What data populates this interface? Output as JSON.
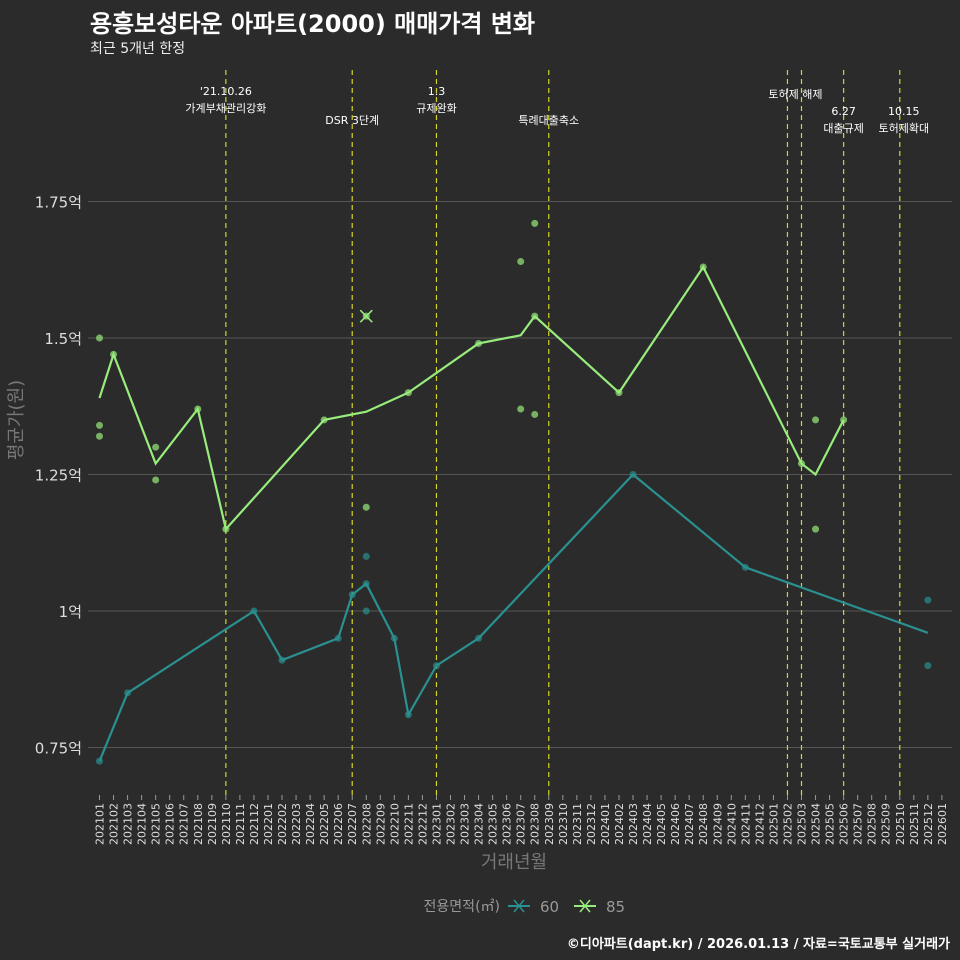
{
  "header": {
    "title": "용흥보성타운 아파트(2000) 매매가격 변화",
    "subtitle": "최근 5개년 한정"
  },
  "footer": "©디아파트(dapt.kr) / 2026.01.13 / 자료=국토교통부 실거래가",
  "colors": {
    "s60": "#2a9090",
    "s85": "#98ec7c",
    "vline": "#d4d42a",
    "grid": "#555555",
    "bg": "#2b2b2b"
  },
  "chart_data": {
    "type": "line",
    "title": "용흥보성타운 아파트(2000) 매매가격 변화",
    "xlabel": "거래년월",
    "ylabel": "평균가(원)",
    "ylim": [
      0.68,
      1.9
    ],
    "yticks": [
      {
        "v": 0.75,
        "label": "0.75억"
      },
      {
        "v": 1.0,
        "label": "1억"
      },
      {
        "v": 1.25,
        "label": "1.25억"
      },
      {
        "v": 1.5,
        "label": "1.5억"
      },
      {
        "v": 1.75,
        "label": "1.75억"
      }
    ],
    "categories": [
      "202101",
      "202102",
      "202103",
      "202104",
      "202105",
      "202106",
      "202107",
      "202108",
      "202109",
      "202110",
      "202111",
      "202112",
      "202201",
      "202202",
      "202203",
      "202204",
      "202205",
      "202206",
      "202207",
      "202208",
      "202209",
      "202210",
      "202211",
      "202212",
      "202301",
      "202302",
      "202303",
      "202304",
      "202305",
      "202306",
      "202307",
      "202308",
      "202309",
      "202310",
      "202311",
      "202312",
      "202401",
      "202402",
      "202403",
      "202404",
      "202405",
      "202406",
      "202407",
      "202408",
      "202409",
      "202410",
      "202411",
      "202412",
      "202501",
      "202502",
      "202503",
      "202504",
      "202505",
      "202506",
      "202507",
      "202508",
      "202509",
      "202510",
      "202511",
      "202512",
      "202601"
    ],
    "legend": {
      "title": "전용면적(㎡)",
      "position": "bottom"
    },
    "series": [
      {
        "name": "60",
        "line": [
          [
            0,
            0.725
          ],
          [
            2,
            0.85
          ],
          [
            11,
            1.0
          ],
          [
            13,
            0.91
          ],
          [
            17,
            0.95
          ],
          [
            18,
            1.03
          ],
          [
            19,
            1.05
          ],
          [
            21,
            0.95
          ],
          [
            22,
            0.81
          ],
          [
            24,
            0.9
          ],
          [
            27,
            0.95
          ],
          [
            38,
            1.25
          ],
          [
            46,
            1.08
          ],
          [
            59,
            0.96
          ]
        ],
        "points": [
          [
            0,
            0.725
          ],
          [
            2,
            0.85
          ],
          [
            11,
            1.0
          ],
          [
            13,
            0.91
          ],
          [
            17,
            0.95
          ],
          [
            18,
            1.03
          ],
          [
            19,
            1.05
          ],
          [
            19,
            1.1
          ],
          [
            19,
            1.0
          ],
          [
            21,
            0.95
          ],
          [
            22,
            0.81
          ],
          [
            24,
            0.9
          ],
          [
            27,
            0.95
          ],
          [
            38,
            1.25
          ],
          [
            46,
            1.08
          ],
          [
            59,
            1.02
          ],
          [
            59,
            0.9
          ]
        ]
      },
      {
        "name": "85",
        "line": [
          [
            0,
            1.39
          ],
          [
            1,
            1.47
          ],
          [
            4,
            1.27
          ],
          [
            7,
            1.37
          ],
          [
            9,
            1.15
          ],
          [
            16,
            1.35
          ],
          [
            19,
            1.365
          ],
          [
            22,
            1.4
          ],
          [
            27,
            1.49
          ],
          [
            30,
            1.505
          ],
          [
            31,
            1.54
          ],
          [
            37,
            1.4
          ],
          [
            43,
            1.63
          ],
          [
            50,
            1.27
          ],
          [
            51,
            1.25
          ],
          [
            53,
            1.35
          ]
        ],
        "points": [
          [
            0,
            1.5
          ],
          [
            0,
            1.34
          ],
          [
            0,
            1.32
          ],
          [
            1,
            1.47
          ],
          [
            4,
            1.3
          ],
          [
            4,
            1.24
          ],
          [
            7,
            1.37
          ],
          [
            9,
            1.15
          ],
          [
            16,
            1.35
          ],
          [
            19,
            1.54
          ],
          [
            19,
            1.19
          ],
          [
            22,
            1.4
          ],
          [
            27,
            1.49
          ],
          [
            30,
            1.64
          ],
          [
            30,
            1.37
          ],
          [
            31,
            1.71
          ],
          [
            31,
            1.54
          ],
          [
            31,
            1.36
          ],
          [
            37,
            1.4
          ],
          [
            43,
            1.63
          ],
          [
            50,
            1.27
          ],
          [
            51,
            1.35
          ],
          [
            51,
            1.15
          ],
          [
            53,
            1.35
          ]
        ]
      }
    ],
    "annotations": [
      {
        "index": 9,
        "lines": [
          "'21.10.26",
          "가계부채관리강화"
        ],
        "row": 0
      },
      {
        "index": 18,
        "lines": [
          "DSR 3단계"
        ],
        "row": 2
      },
      {
        "index": 24,
        "lines": [
          "1.3",
          "규제완화"
        ],
        "row": 0
      },
      {
        "index": 32,
        "lines": [
          "특례대출축소"
        ],
        "row": 2
      },
      {
        "index": 49,
        "lines": [
          "토허제 해제"
        ],
        "row": 1
      },
      {
        "index": 50,
        "lines": [],
        "row": 1
      },
      {
        "index": 53,
        "lines": [
          "6.27",
          "대출규제"
        ],
        "row": 2
      },
      {
        "index": 57,
        "lines": [
          "10.15",
          "토허제확대"
        ],
        "row": 2
      }
    ]
  }
}
